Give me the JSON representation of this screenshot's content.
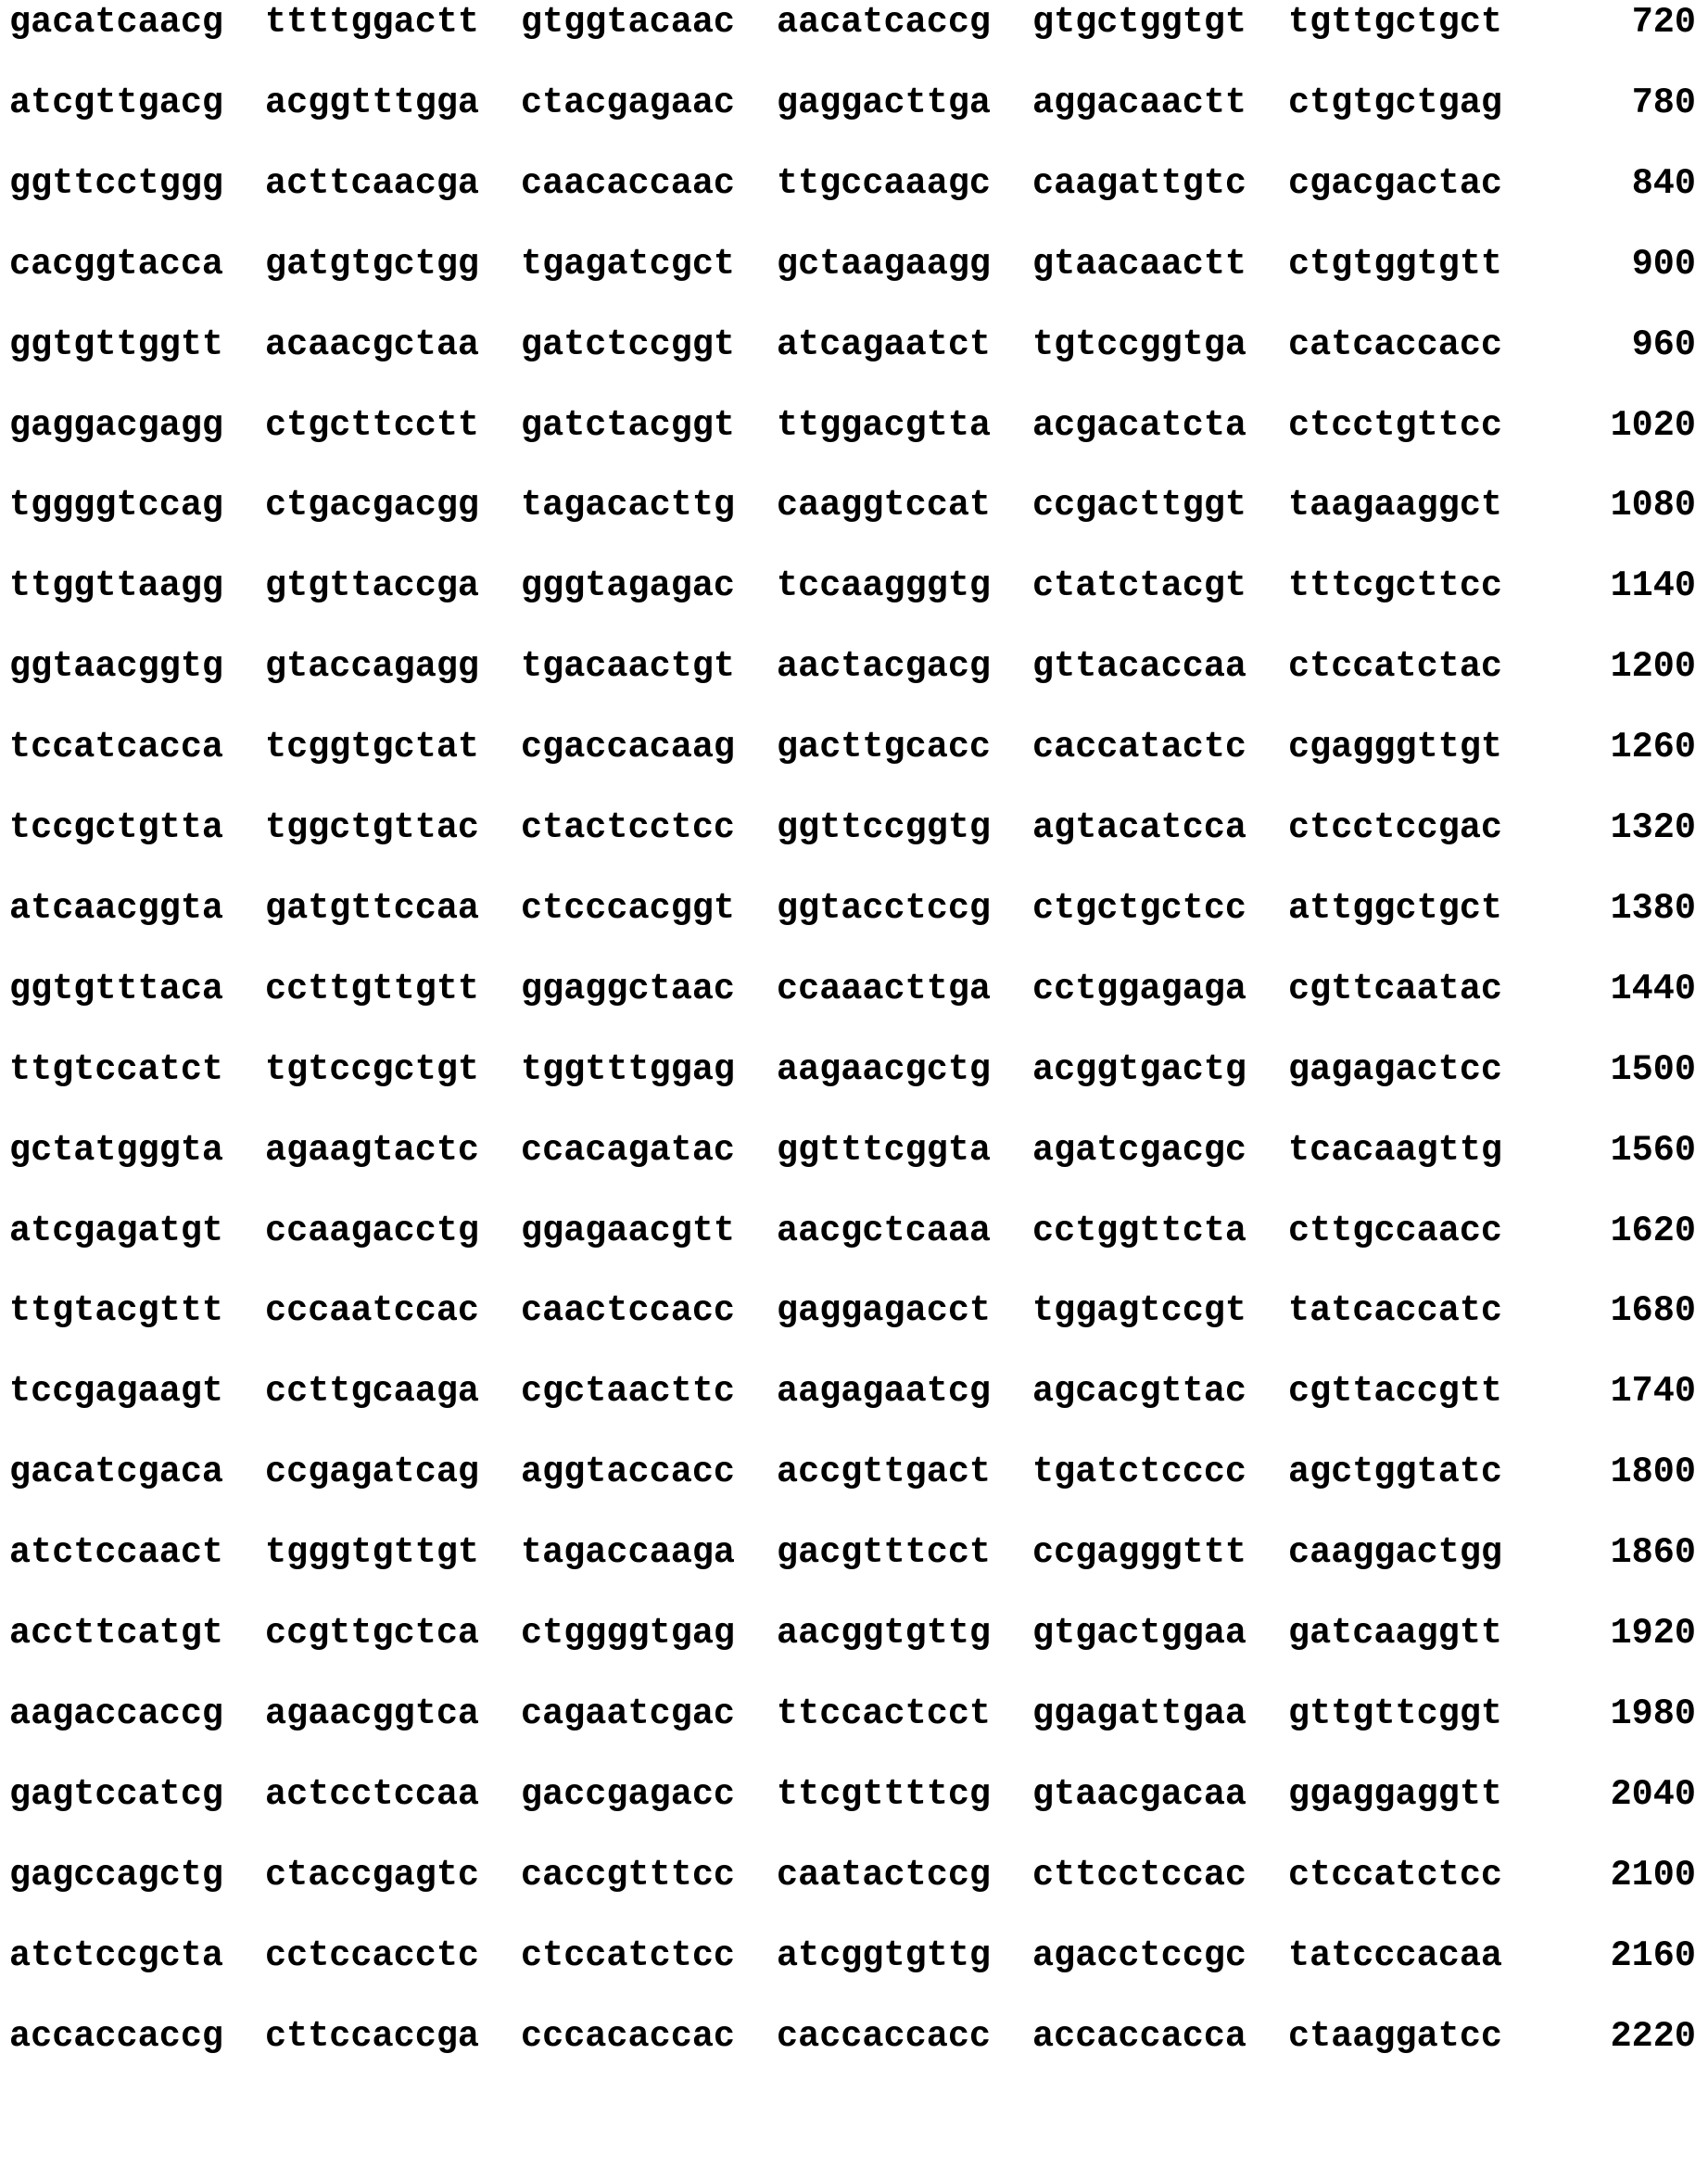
{
  "sequence": {
    "lines": [
      {
        "groups": [
          "gacatcaacg",
          "ttttggactt",
          "gtggtacaac",
          "aacatcaccg",
          "gtgctggtgt",
          "tgttgctgct"
        ],
        "position": "720"
      },
      {
        "groups": [
          "atcgttgacg",
          "acggtttgga",
          "ctacgagaac",
          "gaggacttga",
          "aggacaactt",
          "ctgtgctgag"
        ],
        "position": "780"
      },
      {
        "groups": [
          "ggttcctggg",
          "acttcaacga",
          "caacaccaac",
          "ttgccaaagc",
          "caagattgtc",
          "cgacgactac"
        ],
        "position": "840"
      },
      {
        "groups": [
          "cacggtacca",
          "gatgtgctgg",
          "tgagatcgct",
          "gctaagaagg",
          "gtaacaactt",
          "ctgtggtgtt"
        ],
        "position": "900"
      },
      {
        "groups": [
          "ggtgttggtt",
          "acaacgctaa",
          "gatctccggt",
          "atcagaatct",
          "tgtccggtga",
          "catcaccacc"
        ],
        "position": "960"
      },
      {
        "groups": [
          "gaggacgagg",
          "ctgcttcctt",
          "gatctacggt",
          "ttggacgtta",
          "acgacatcta",
          "ctcctgttcc"
        ],
        "position": "1020"
      },
      {
        "groups": [
          "tggggtccag",
          "ctgacgacgg",
          "tagacacttg",
          "caaggtccat",
          "ccgacttggt",
          "taagaaggct"
        ],
        "position": "1080"
      },
      {
        "groups": [
          "ttggttaagg",
          "gtgttaccga",
          "gggtagagac",
          "tccaagggtg",
          "ctatctacgt",
          "tttcgcttcc"
        ],
        "position": "1140"
      },
      {
        "groups": [
          "ggtaacggtg",
          "gtaccagagg",
          "tgacaactgt",
          "aactacgacg",
          "gttacaccaa",
          "ctccatctac"
        ],
        "position": "1200"
      },
      {
        "groups": [
          "tccatcacca",
          "tcggtgctat",
          "cgaccacaag",
          "gacttgcacc",
          "caccatactc",
          "cgagggttgt"
        ],
        "position": "1260"
      },
      {
        "groups": [
          "tccgctgtta",
          "tggctgttac",
          "ctactcctcc",
          "ggttccggtg",
          "agtacatcca",
          "ctcctccgac"
        ],
        "position": "1320"
      },
      {
        "groups": [
          "atcaacggta",
          "gatgttccaa",
          "ctcccacggt",
          "ggtacctccg",
          "ctgctgctcc",
          "attggctgct"
        ],
        "position": "1380"
      },
      {
        "groups": [
          "ggtgtttaca",
          "ccttgttgtt",
          "ggaggctaac",
          "ccaaacttga",
          "cctggagaga",
          "cgttcaatac"
        ],
        "position": "1440"
      },
      {
        "groups": [
          "ttgtccatct",
          "tgtccgctgt",
          "tggtttggag",
          "aagaacgctg",
          "acggtgactg",
          "gagagactcc"
        ],
        "position": "1500"
      },
      {
        "groups": [
          "gctatgggta",
          "agaagtactc",
          "ccacagatac",
          "ggtttcggta",
          "agatcgacgc",
          "tcacaagttg"
        ],
        "position": "1560"
      },
      {
        "groups": [
          "atcgagatgt",
          "ccaagacctg",
          "ggagaacgtt",
          "aacgctcaaa",
          "cctggttcta",
          "cttgccaacc"
        ],
        "position": "1620"
      },
      {
        "groups": [
          "ttgtacgttt",
          "cccaatccac",
          "caactccacc",
          "gaggagacct",
          "tggagtccgt",
          "tatcaccatc"
        ],
        "position": "1680"
      },
      {
        "groups": [
          "tccgagaagt",
          "ccttgcaaga",
          "cgctaacttc",
          "aagagaatcg",
          "agcacgttac",
          "cgttaccgtt"
        ],
        "position": "1740"
      },
      {
        "groups": [
          "gacatcgaca",
          "ccgagatcag",
          "aggtaccacc",
          "accgttgact",
          "tgatctcccc",
          "agctggtatc"
        ],
        "position": "1800"
      },
      {
        "groups": [
          "atctccaact",
          "tgggtgttgt",
          "tagaccaaga",
          "gacgtttcct",
          "ccgagggttt",
          "caaggactgg"
        ],
        "position": "1860"
      },
      {
        "groups": [
          "accttcatgt",
          "ccgttgctca",
          "ctggggtgag",
          "aacggtgttg",
          "gtgactggaa",
          "gatcaaggtt"
        ],
        "position": "1920"
      },
      {
        "groups": [
          "aagaccaccg",
          "agaacggtca",
          "cagaatcgac",
          "ttccactcct",
          "ggagattgaa",
          "gttgttcggt"
        ],
        "position": "1980"
      },
      {
        "groups": [
          "gagtccatcg",
          "actcctccaa",
          "gaccgagacc",
          "ttcgttttcg",
          "gtaacgacaa",
          "ggaggaggtt"
        ],
        "position": "2040"
      },
      {
        "groups": [
          "gagccagctg",
          "ctaccgagtc",
          "caccgtttcc",
          "caatactccg",
          "cttcctccac",
          "ctccatctcc"
        ],
        "position": "2100"
      },
      {
        "groups": [
          "atctccgcta",
          "cctccacctc",
          "ctccatctcc",
          "atcggtgttg",
          "agacctccgc",
          "tatcccacaa"
        ],
        "position": "2160"
      },
      {
        "groups": [
          "accaccaccg",
          "cttccaccga",
          "cccacaccac",
          "caccaccacc",
          "accaccacca",
          "ctaaggatcc"
        ],
        "position": "2220"
      }
    ]
  }
}
